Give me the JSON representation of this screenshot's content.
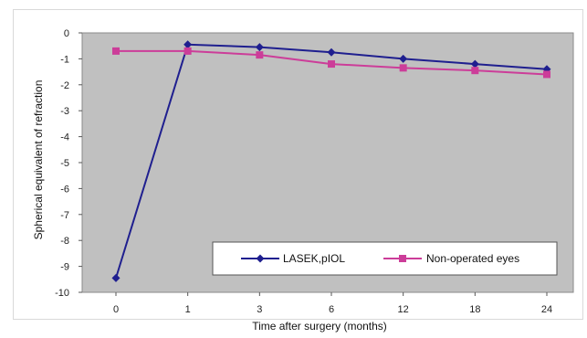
{
  "chart_data": {
    "type": "line",
    "title": "",
    "xlabel": "Time after surgery (months)",
    "ylabel": "Spherical equivalent  of refraction",
    "categories": [
      "0",
      "1",
      "3",
      "6",
      "12",
      "18",
      "24"
    ],
    "ylim": [
      -10,
      0
    ],
    "yticks": [
      0,
      -1,
      -2,
      -3,
      -4,
      -5,
      -6,
      -7,
      -8,
      -9,
      -10
    ],
    "grid": false,
    "legend_position": "bottom-right",
    "plot_background": "#c0c0c0",
    "series": [
      {
        "name": "LASEK,pIOL",
        "color": "#1f1f8f",
        "marker": "diamond",
        "values": [
          -9.45,
          -0.45,
          -0.55,
          -0.75,
          -1.0,
          -1.2,
          -1.4
        ]
      },
      {
        "name": "Non-operated eyes",
        "color": "#cc3d99",
        "marker": "square",
        "values": [
          -0.7,
          -0.7,
          -0.85,
          -1.2,
          -1.35,
          -1.45,
          -1.6
        ]
      }
    ]
  }
}
